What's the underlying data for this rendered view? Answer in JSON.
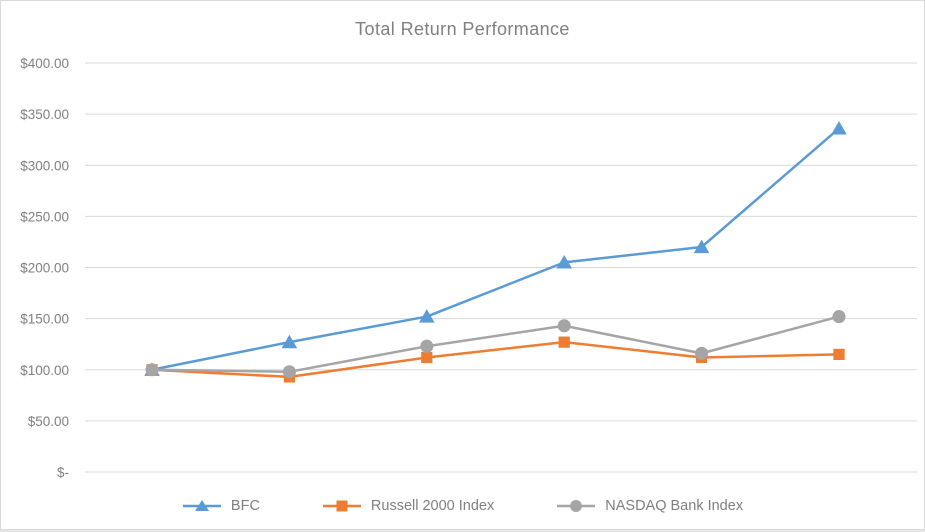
{
  "chart_data": {
    "type": "line",
    "title": "Total Return Performance",
    "y_axis": {
      "min": 0,
      "max": 400,
      "step": 50,
      "tick_labels": [
        "$400.00",
        "$350.00",
        "$300.00",
        "$250.00",
        "$200.00",
        "$150.00",
        "$100.00",
        "$50.00",
        "$-"
      ]
    },
    "x_axis": {
      "tick_labels": []
    },
    "grid": "horizontal",
    "legend_position": "bottom",
    "series": [
      {
        "name": "BFC",
        "color": "#5B9BD5",
        "marker": "triangle",
        "values": [
          100,
          127,
          152,
          205,
          220,
          336
        ]
      },
      {
        "name": "Russell 2000 Index",
        "color": "#ED7D31",
        "marker": "square",
        "values": [
          100,
          93,
          112,
          127,
          112,
          115
        ]
      },
      {
        "name": "NASDAQ Bank Index",
        "color": "#A5A5A5",
        "marker": "circle",
        "values": [
          100,
          98,
          123,
          143,
          116,
          152
        ]
      }
    ],
    "colors": {
      "title_text": "#808080",
      "axis_text": "#7f7f7f",
      "gridline": "#d9d9d9",
      "background": "#ffffff"
    }
  }
}
